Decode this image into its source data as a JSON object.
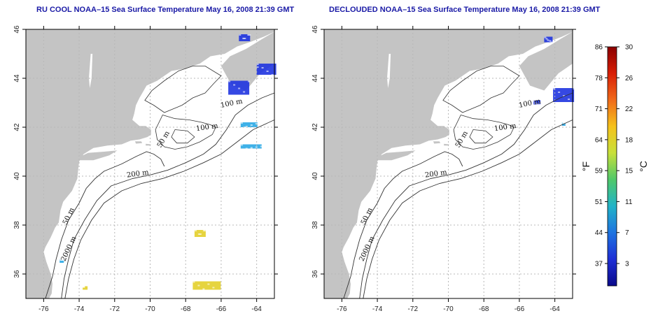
{
  "panels": [
    {
      "id": "left",
      "title": "RU COOL NOAA–15 Sea Surface Temperature May 16, 2008 21:39 GMT"
    },
    {
      "id": "right",
      "title": "DECLOUDED NOAA–15 Sea Surface Temperature May 16, 2008 21:39 GMT"
    }
  ],
  "map": {
    "lon_range": [
      -77,
      -63
    ],
    "lat_range": [
      35,
      46
    ],
    "lon_ticks": [
      "-76",
      "-74",
      "-72",
      "-70",
      "-68",
      "-66",
      "-64"
    ],
    "lat_ticks": [
      "36",
      "38",
      "40",
      "42",
      "44",
      "46"
    ],
    "contour_labels": [
      "100 m",
      "100 m",
      "50 m",
      "200 m",
      "50 m",
      "2000 m"
    ],
    "colors": {
      "land": "#c4c4c4",
      "ocean": "#ffffff",
      "grid": "#b8b8b8",
      "contour": "#333333",
      "cold": "#1f34e0",
      "cool": "#2aa8e6",
      "warm": "#e3cf2a"
    }
  },
  "colorbar": {
    "fahrenheit_labels": [
      "86",
      "78",
      "71",
      "64",
      "59",
      "51",
      "44",
      "37"
    ],
    "celsius_labels": [
      "30",
      "26",
      "22",
      "18",
      "15",
      "11",
      "7",
      "3"
    ],
    "unit_f": "°F",
    "unit_c": "°C",
    "gradient_stops": [
      "#8b0000",
      "#d81e05",
      "#f06a1a",
      "#f5c21b",
      "#c8e03a",
      "#4fc86a",
      "#21b3c8",
      "#1e73e0",
      "#1f2fd6",
      "#0a0a8a"
    ]
  }
}
